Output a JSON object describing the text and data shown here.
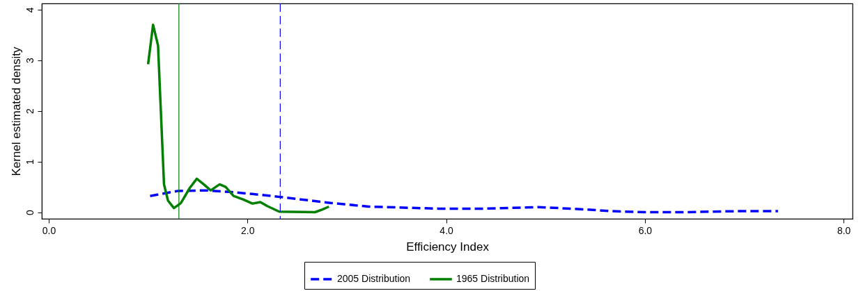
{
  "chart_data": {
    "type": "line",
    "xlabel": "Efficiency Index",
    "ylabel": "Kernel estimated density",
    "xlim": [
      -0.07,
      8.09
    ],
    "ylim": [
      -0.13,
      4.12
    ],
    "xticks": [
      {
        "value": 0,
        "label": "0.0"
      },
      {
        "value": 2,
        "label": "2.0"
      },
      {
        "value": 4,
        "label": "4.0"
      },
      {
        "value": 6,
        "label": "6.0"
      },
      {
        "value": 8,
        "label": "8.0"
      }
    ],
    "yticks": [
      0,
      1,
      2,
      3,
      4
    ],
    "grid": false,
    "legend": "bottom",
    "marker": "none",
    "series": [
      {
        "name": "2005 Distribution",
        "color": "#0000ff",
        "line_style": "dashed",
        "x": [
          1.02,
          1.3,
          1.58,
          1.82,
          2.05,
          2.33,
          2.85,
          3.22,
          3.92,
          4.04,
          4.39,
          4.93,
          5.35,
          5.66,
          6.01,
          6.4,
          6.92,
          7.34
        ],
        "values": [
          0.32,
          0.42,
          0.43,
          0.4,
          0.36,
          0.3,
          0.18,
          0.11,
          0.07,
          0.07,
          0.07,
          0.1,
          0.06,
          0.02,
          0.0,
          0.0,
          0.02,
          0.02
        ]
      },
      {
        "name": "1965 Distribution",
        "color": "#007f00",
        "line_style": "solid",
        "x": [
          1.0,
          1.05,
          1.1,
          1.13,
          1.16,
          1.2,
          1.26,
          1.33,
          1.42,
          1.49,
          1.56,
          1.63,
          1.72,
          1.78,
          1.86,
          1.96,
          2.05,
          2.13,
          2.2,
          2.32,
          2.68,
          2.75,
          2.82
        ],
        "values": [
          2.92,
          3.7,
          3.29,
          1.92,
          0.55,
          0.23,
          0.08,
          0.18,
          0.48,
          0.66,
          0.55,
          0.43,
          0.55,
          0.5,
          0.32,
          0.25,
          0.17,
          0.2,
          0.12,
          0.01,
          0.0,
          0.05,
          0.11
        ]
      }
    ],
    "ref_lines": [
      {
        "axis": "x",
        "value": 1.31,
        "color": "#007f00",
        "line_style": "solid"
      },
      {
        "axis": "x",
        "value": 2.33,
        "color": "#0000ff",
        "line_style": "dashed"
      }
    ]
  }
}
